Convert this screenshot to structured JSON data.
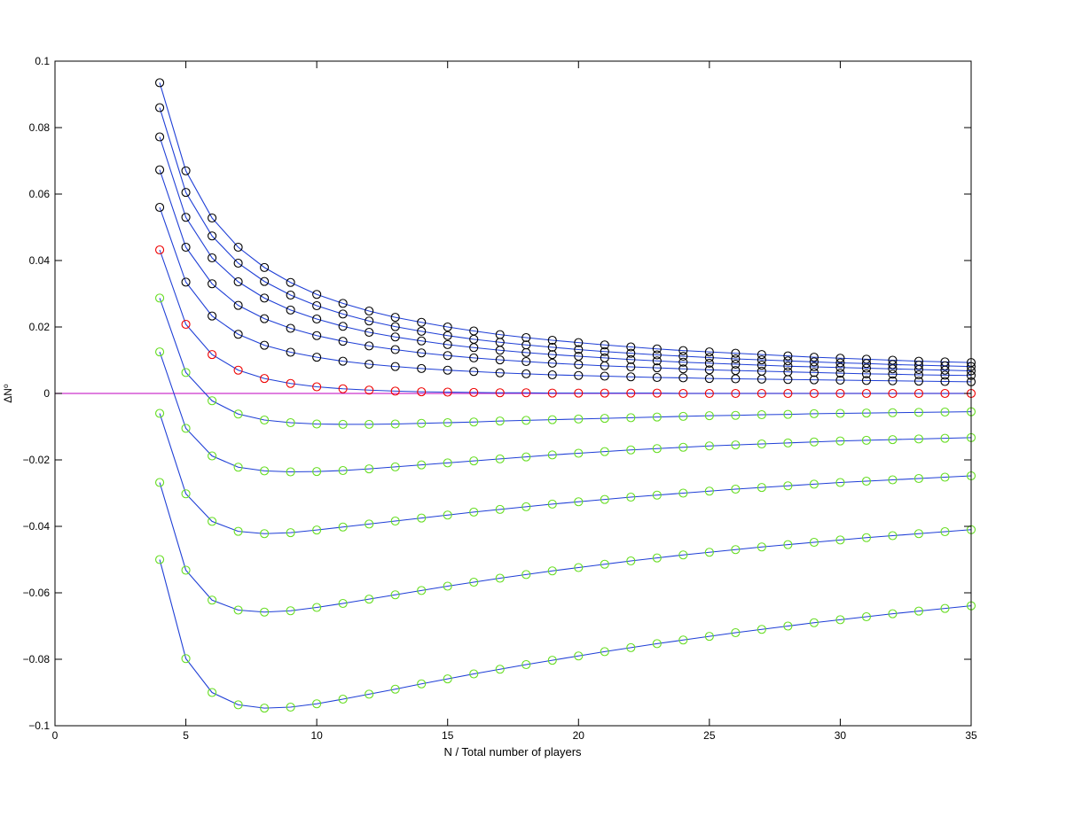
{
  "chart_data": {
    "type": "line",
    "title": "",
    "xlabel": "N / Total number of players",
    "ylabel": "ΔN⁰",
    "xlim": [
      0,
      35
    ],
    "ylim": [
      -0.1,
      0.1
    ],
    "x_ticks": [
      0,
      5,
      10,
      15,
      20,
      25,
      30,
      35
    ],
    "y_ticks": [
      -0.1,
      -0.08,
      -0.06,
      -0.04,
      -0.02,
      0,
      0.02,
      0.04,
      0.06,
      0.08,
      0.1
    ],
    "x_tick_labels": [
      "0",
      "5",
      "10",
      "15",
      "20",
      "25",
      "30",
      "35"
    ],
    "y_tick_labels": [
      "−0.1",
      "−0.08",
      "−0.06",
      "−0.04",
      "−0.02",
      "0",
      "0.02",
      "0.04",
      "0.06",
      "0.08",
      "0.1"
    ],
    "grid": false,
    "x": [
      4,
      5,
      6,
      7,
      8,
      9,
      10,
      11,
      12,
      13,
      14,
      15,
      16,
      17,
      18,
      19,
      20,
      21,
      22,
      23,
      24,
      25,
      26,
      27,
      28,
      29,
      30,
      31,
      32,
      33,
      34,
      35
    ],
    "line_color": "#1f3fd6",
    "zero_line": {
      "y": 0,
      "color": "#cc33cc"
    },
    "series": [
      {
        "marker_color": "#000000",
        "values": [
          0.0935,
          0.067,
          0.0528,
          0.044,
          0.0379,
          0.0334,
          0.0298,
          0.0271,
          0.0248,
          0.0229,
          0.0214,
          0.02,
          0.0188,
          0.0177,
          0.0168,
          0.016,
          0.0153,
          0.0146,
          0.014,
          0.0134,
          0.0129,
          0.0125,
          0.0121,
          0.0117,
          0.0113,
          0.0109,
          0.0106,
          0.0103,
          0.01,
          0.0097,
          0.0095,
          0.0093
        ]
      },
      {
        "marker_color": "#000000",
        "values": [
          0.086,
          0.0605,
          0.0474,
          0.0392,
          0.0337,
          0.0296,
          0.0264,
          0.0239,
          0.0218,
          0.0201,
          0.0187,
          0.0174,
          0.0163,
          0.0154,
          0.0146,
          0.0139,
          0.0132,
          0.0126,
          0.0121,
          0.0116,
          0.0112,
          0.0108,
          0.0104,
          0.0101,
          0.0098,
          0.0095,
          0.0092,
          0.009,
          0.0087,
          0.0085,
          0.0083,
          0.0081
        ]
      },
      {
        "marker_color": "#000000",
        "values": [
          0.0772,
          0.053,
          0.0408,
          0.0336,
          0.0287,
          0.0251,
          0.0224,
          0.0202,
          0.0184,
          0.017,
          0.0158,
          0.0147,
          0.0138,
          0.013,
          0.0123,
          0.0117,
          0.0112,
          0.0107,
          0.0102,
          0.0098,
          0.0094,
          0.0091,
          0.0088,
          0.0085,
          0.0082,
          0.008,
          0.0078,
          0.0076,
          0.0074,
          0.0072,
          0.007,
          0.0068
        ]
      },
      {
        "marker_color": "#000000",
        "values": [
          0.0673,
          0.044,
          0.033,
          0.0265,
          0.0225,
          0.0196,
          0.0174,
          0.0157,
          0.0143,
          0.0132,
          0.0122,
          0.0114,
          0.0107,
          0.0101,
          0.0096,
          0.0091,
          0.0087,
          0.0083,
          0.008,
          0.0077,
          0.0074,
          0.0071,
          0.0069,
          0.0067,
          0.0065,
          0.0063,
          0.0061,
          0.0059,
          0.0058,
          0.0056,
          0.0055,
          0.0054
        ]
      },
      {
        "marker_color": "#000000",
        "values": [
          0.056,
          0.0335,
          0.0233,
          0.0178,
          0.0145,
          0.0124,
          0.0109,
          0.0097,
          0.0088,
          0.0081,
          0.0075,
          0.007,
          0.0066,
          0.0062,
          0.0059,
          0.0056,
          0.0054,
          0.0052,
          0.005,
          0.0048,
          0.0047,
          0.0045,
          0.0044,
          0.0043,
          0.0042,
          0.0041,
          0.004,
          0.0039,
          0.0038,
          0.0037,
          0.0036,
          0.0035
        ]
      },
      {
        "marker_color": "#ee0000",
        "values": [
          0.0432,
          0.0208,
          0.0117,
          0.007,
          0.0045,
          0.003,
          0.002,
          0.0014,
          0.001,
          0.0007,
          0.0005,
          0.0004,
          0.0003,
          0.0002,
          0.0002,
          0.0001,
          0.0001,
          0.0001,
          0.0001,
          0.0001,
          0.0,
          0.0,
          0.0,
          0.0,
          0.0,
          0.0,
          0.0,
          0.0,
          0.0,
          0.0,
          0.0,
          0.0
        ]
      },
      {
        "marker_color": "#66dd22",
        "values": [
          0.0287,
          0.0063,
          -0.0022,
          -0.0062,
          -0.008,
          -0.0088,
          -0.0092,
          -0.0093,
          -0.0093,
          -0.0092,
          -0.009,
          -0.0088,
          -0.0086,
          -0.0083,
          -0.0081,
          -0.0079,
          -0.0077,
          -0.0075,
          -0.0073,
          -0.0071,
          -0.0069,
          -0.0067,
          -0.0066,
          -0.0064,
          -0.0063,
          -0.0061,
          -0.006,
          -0.0059,
          -0.0058,
          -0.0057,
          -0.0056,
          -0.0055
        ]
      },
      {
        "marker_color": "#66dd22",
        "values": [
          0.0125,
          -0.0105,
          -0.0188,
          -0.0222,
          -0.0233,
          -0.0236,
          -0.0235,
          -0.0232,
          -0.0227,
          -0.0221,
          -0.0215,
          -0.0209,
          -0.0203,
          -0.0197,
          -0.0191,
          -0.0185,
          -0.018,
          -0.0175,
          -0.017,
          -0.0166,
          -0.0162,
          -0.0158,
          -0.0155,
          -0.0152,
          -0.0149,
          -0.0146,
          -0.0143,
          -0.0141,
          -0.0139,
          -0.0137,
          -0.0135,
          -0.0133
        ]
      },
      {
        "marker_color": "#66dd22",
        "values": [
          -0.006,
          -0.0302,
          -0.0385,
          -0.0415,
          -0.0422,
          -0.0419,
          -0.0411,
          -0.0402,
          -0.0393,
          -0.0384,
          -0.0375,
          -0.0366,
          -0.0357,
          -0.0349,
          -0.0341,
          -0.0333,
          -0.0326,
          -0.0319,
          -0.0312,
          -0.0306,
          -0.03,
          -0.0294,
          -0.0288,
          -0.0283,
          -0.0278,
          -0.0273,
          -0.0268,
          -0.0264,
          -0.026,
          -0.0256,
          -0.0252,
          -0.0248
        ]
      },
      {
        "marker_color": "#66dd22",
        "values": [
          -0.0268,
          -0.0532,
          -0.0622,
          -0.0652,
          -0.0658,
          -0.0654,
          -0.0644,
          -0.0632,
          -0.0619,
          -0.0606,
          -0.0593,
          -0.058,
          -0.0568,
          -0.0556,
          -0.0545,
          -0.0534,
          -0.0524,
          -0.0514,
          -0.0504,
          -0.0495,
          -0.0486,
          -0.0478,
          -0.047,
          -0.0462,
          -0.0455,
          -0.0448,
          -0.0441,
          -0.0434,
          -0.0428,
          -0.0422,
          -0.0416,
          -0.041
        ]
      },
      {
        "marker_color": "#66dd22",
        "values": [
          -0.05,
          -0.0798,
          -0.09,
          -0.0937,
          -0.0947,
          -0.0944,
          -0.0934,
          -0.092,
          -0.0905,
          -0.089,
          -0.0874,
          -0.0859,
          -0.0844,
          -0.083,
          -0.0816,
          -0.0803,
          -0.079,
          -0.0777,
          -0.0765,
          -0.0753,
          -0.0742,
          -0.0731,
          -0.072,
          -0.071,
          -0.07,
          -0.069,
          -0.0681,
          -0.0672,
          -0.0663,
          -0.0655,
          -0.0647,
          -0.0639
        ]
      }
    ]
  }
}
